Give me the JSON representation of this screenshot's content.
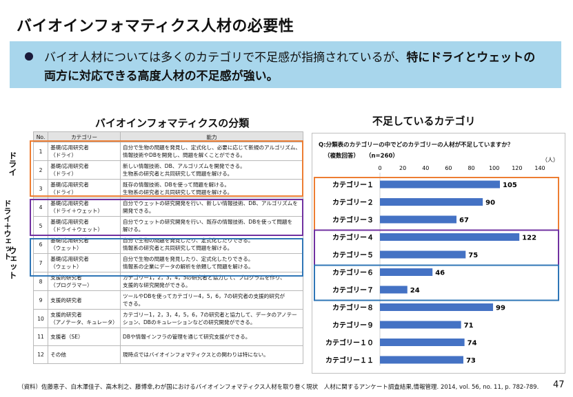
{
  "title": "バイオインフォマティクス人材の必要性",
  "banner": {
    "line1_normal": "バイオ人材については多くのカテゴリで不足感が指摘されているが、",
    "line1_bold": "特にドライとウェットの",
    "line2": "両方に対応できる高度人材の不足感が強い。"
  },
  "left": {
    "title": "バイオインフォマティクスの分類",
    "headers": [
      "No.",
      "カテゴリー",
      "能力"
    ],
    "rows": [
      {
        "no": "1",
        "cat": [
          "基礎/応用研究者",
          "（ドライ）"
        ],
        "ability": [
          "自分で生物の問題を発見し、定式化し、必要に応じて新規のアルゴリズム、",
          "情報技術やDBを開発し、問題を解くことができる。"
        ]
      },
      {
        "no": "2",
        "cat": [
          "基礎/応用研究者",
          "（ドライ）"
        ],
        "ability": [
          "新しい情報技術、DB、アルゴリズムを開発できる。",
          "生物系の研究者と共同研究して問題を解ける。"
        ]
      },
      {
        "no": "3",
        "cat": [
          "基礎/応用研究者",
          "（ドライ）"
        ],
        "ability": [
          "既存の情報技術、DBを使って問題を解ける。",
          "生物系の研究者と共同研究して問題を解ける。"
        ]
      },
      {
        "no": "4",
        "cat": [
          "基礎/応用研究者",
          "（ドライ＋ウェット）"
        ],
        "ability": [
          "自分でウェットの研究開発を行い、新しい情報技術、DB、アルゴリズムを",
          "開発できる。"
        ]
      },
      {
        "no": "5",
        "cat": [
          "基礎/応用研究者",
          "（ドライ＋ウェット）"
        ],
        "ability": [
          "自分でウェットの研究開発を行い、既存の情報技術、DBを使って問題を",
          "解ける。"
        ]
      },
      {
        "no": "6",
        "cat": [
          "基礎/応用研究者",
          "（ウェット）"
        ],
        "ability": [
          "自分で生物の問題を発見したり、定式化したりできる。",
          "情報系の研究者と共同研究して問題を解ける。"
        ]
      },
      {
        "no": "7",
        "cat": [
          "基礎/応用研究者",
          "（ウェット）"
        ],
        "ability": [
          "自分で生物の問題を発見したり、定式化したりできる。",
          "情報系の企業にデータの解析を依頼して問題を解ける。"
        ]
      },
      {
        "no": "8",
        "cat": [
          "支援的研究者",
          "（プログラマー）"
        ],
        "ability": [
          "カテゴリー1，2，3，4，5の研究者と協力して、プログラムを作り、",
          "支援的な研究開発ができる。"
        ]
      },
      {
        "no": "9",
        "cat": [
          "支援的研究者"
        ],
        "ability": [
          "ツールやDBを使ってカテゴリー4，5，6，7の研究者の支援的研究が",
          "できる。"
        ]
      },
      {
        "no": "10",
        "cat": [
          "支援的研究者",
          "（アノテータ、キュレータ）"
        ],
        "ability": [
          "カテゴリー1，2，3，4，5，6，7の研究者と協力して、データのアノテー",
          "ション、DBのキュレーションなどの研究開発ができる。"
        ]
      },
      {
        "no": "11",
        "cat": [
          "支援者（SE）"
        ],
        "ability": [
          "DBや情報インフラの管理を通じて研究支援ができる。"
        ]
      },
      {
        "no": "12",
        "cat": [
          "その他"
        ],
        "ability": [
          "現時点ではバイオインフォマティクスとの関わりは特にない。"
        ]
      }
    ],
    "group_labels": {
      "dry": "ドライ",
      "drywet": "ドライ＋ウェット",
      "wet": "ウェット"
    }
  },
  "right": {
    "title": "不足しているカテゴリ",
    "question": "Q:分類表のカテゴリーの中でどのカテゴリーの人材が不足していますか？",
    "note": "（複数回答）",
    "n": "（n=260）",
    "unit": "（人）"
  },
  "colors": {
    "bar": "#4472c4",
    "orange": "#ed7d31",
    "purple": "#7030a0",
    "blue": "#2e75b6",
    "banner": "#a8d6ec"
  },
  "chart_data": {
    "type": "bar",
    "orientation": "horizontal",
    "categories": [
      "カテゴリー１",
      "カテゴリー２",
      "カテゴリー３",
      "カテゴリー４",
      "カテゴリー５",
      "カテゴリー６",
      "カテゴリー７",
      "カテゴリー８",
      "カテゴリー９",
      "カテゴリー１０",
      "カテゴリー１１"
    ],
    "values": [
      105,
      90,
      67,
      122,
      75,
      46,
      24,
      99,
      71,
      74,
      73
    ],
    "xlim": [
      0,
      140
    ],
    "ticks": [
      0,
      20,
      40,
      60,
      80,
      100,
      120,
      140
    ],
    "data_labels": true
  },
  "footer": "（資料）佐藤恵子、白木澤佳子、高木利之、藤博幸,わが国におけるバイオインフォマティクス人材を取り巻く現状　人材に関するアンケート調査結果,情報管理. 2014, vol. 56, no. 11, p. 782-789.",
  "page_number": "47"
}
